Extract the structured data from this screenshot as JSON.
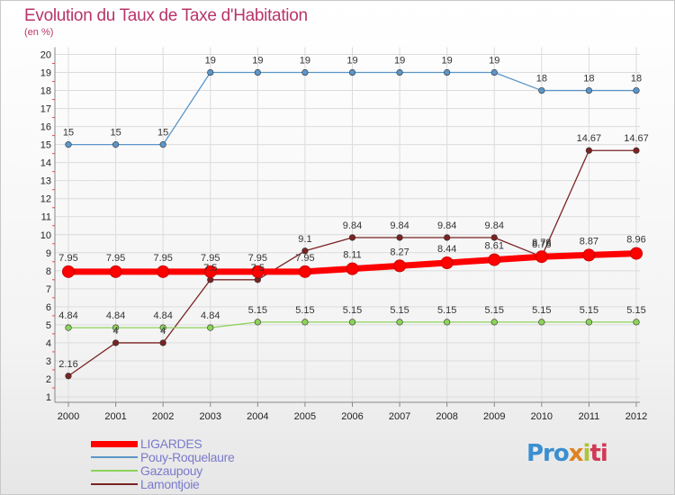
{
  "chart_data": {
    "type": "line",
    "title": "Evolution du Taux de Taxe d'Habitation",
    "subtitle": "(en %)",
    "categories": [
      "2000",
      "2001",
      "2002",
      "2003",
      "2004",
      "2005",
      "2006",
      "2007",
      "2008",
      "2009",
      "2010",
      "2011",
      "2012"
    ],
    "ylim": [
      1,
      20
    ],
    "yticks": [
      1,
      2,
      3,
      4,
      5,
      6,
      7,
      8,
      9,
      10,
      11,
      12,
      13,
      14,
      15,
      16,
      17,
      18,
      19,
      20
    ],
    "grid": true,
    "legend_position": "bottom-left",
    "series": [
      {
        "name": "LIGARDES",
        "color": "#ff0000",
        "values": [
          7.95,
          7.95,
          7.95,
          7.95,
          7.95,
          7.95,
          8.11,
          8.27,
          8.44,
          8.61,
          8.78,
          8.87,
          8.96
        ],
        "labels": [
          "7.95",
          "7.95",
          "7.95",
          "7.95",
          "7.95",
          "7.95",
          "8.11",
          "8.27",
          "8.44",
          "8.61",
          "8.78",
          "8.87",
          "8.96"
        ]
      },
      {
        "name": "Pouy-Roquelaure",
        "color": "#5b96c8",
        "values": [
          15,
          15,
          15,
          19,
          19,
          19,
          19,
          19,
          19,
          19,
          18,
          18,
          18
        ],
        "labels": [
          "15",
          "15",
          "15",
          "19",
          "19",
          "19",
          "19",
          "19",
          "19",
          "19",
          "18",
          "18",
          "18"
        ]
      },
      {
        "name": "Gazaupouy",
        "color": "#8cd35a",
        "values": [
          4.84,
          4.84,
          4.84,
          4.84,
          5.15,
          5.15,
          5.15,
          5.15,
          5.15,
          5.15,
          5.15,
          5.15,
          5.15
        ],
        "labels": [
          "4.84",
          "4.84",
          "4.84",
          "4.84",
          "5.15",
          "5.15",
          "5.15",
          "5.15",
          "5.15",
          "5.15",
          "5.15",
          "5.15",
          "5.15"
        ]
      },
      {
        "name": "Lamontjoie",
        "color": "#7a2323",
        "values": [
          2.16,
          4,
          4,
          7.5,
          7.5,
          9.1,
          9.84,
          9.84,
          9.84,
          9.84,
          8.78,
          14.67,
          14.67
        ],
        "labels": [
          "2.16",
          "4",
          "4",
          "7.5",
          "7.5",
          "9.1",
          "9.84",
          "9.84",
          "9.84",
          "9.84",
          "8.78",
          "14.67",
          "14.67"
        ]
      }
    ]
  },
  "brand": {
    "letters": [
      "Pro",
      "x",
      "i",
      "ti"
    ]
  }
}
